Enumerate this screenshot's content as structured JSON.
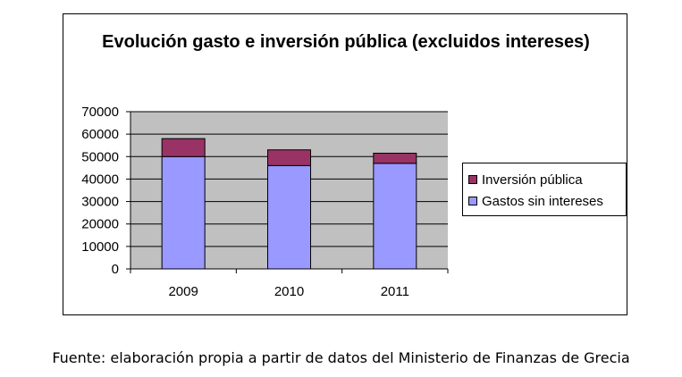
{
  "chart_data": {
    "type": "bar",
    "stacked": true,
    "title": "Evolución gasto e inversión pública (excluidos intereses)",
    "categories": [
      "2009",
      "2010",
      "2011"
    ],
    "series": [
      {
        "name": "Gastos sin intereses",
        "values": [
          50000,
          46000,
          47000
        ],
        "color": "#9999ff"
      },
      {
        "name": "Inversión pública",
        "values": [
          8000,
          7000,
          4500
        ],
        "color": "#993366"
      }
    ],
    "ylim": [
      0,
      70000
    ],
    "yticks": [
      "0",
      "10000",
      "20000",
      "30000",
      "40000",
      "50000",
      "60000",
      "70000"
    ],
    "grid": true,
    "plot_background": "#c0c0c0",
    "legend": {
      "placement": "right",
      "entries": [
        "Inversión pública",
        "Gastos sin intereses"
      ]
    }
  },
  "source_note": "Fuente: elaboración propia a partir de datos del Ministerio de Finanzas de Grecia"
}
